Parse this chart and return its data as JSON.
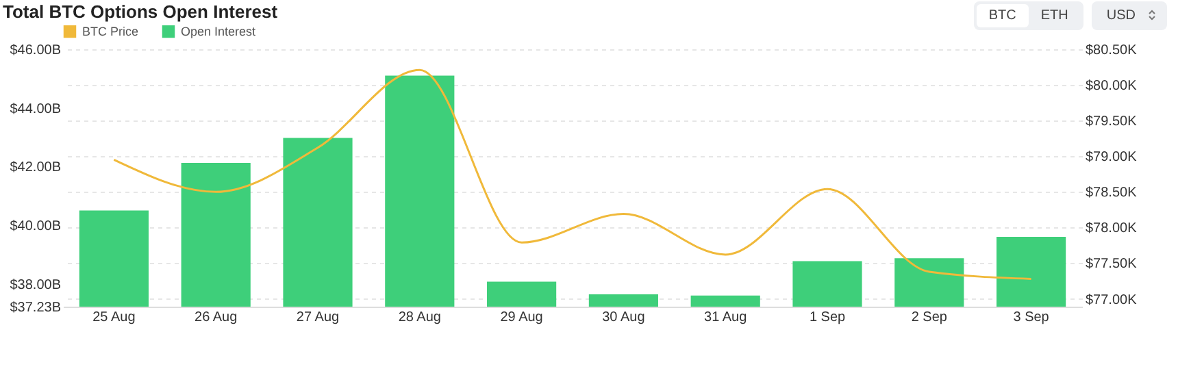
{
  "chart_data": {
    "type": "bar",
    "title": "Total BTC Options Open Interest",
    "annotations": [
      "BTC",
      "ETH",
      "USD"
    ],
    "categories": [
      "25 Aug",
      "26 Aug",
      "27 Aug",
      "28 Aug",
      "29 Aug",
      "30 Aug",
      "31 Aug",
      "1 Sep",
      "2 Sep",
      "3 Sep"
    ],
    "series": [
      {
        "name": "Open Interest",
        "color": "#3ecf7a",
        "values": [
          40.51,
          42.13,
          42.98,
          45.1,
          38.08,
          37.65,
          37.61,
          38.78,
          38.88,
          39.61
        ]
      },
      {
        "name": "BTC Price",
        "type": "line",
        "axis": "y2",
        "color": "#f0b93a",
        "values": [
          78.95,
          78.5,
          79.12,
          80.21,
          77.79,
          78.19,
          77.62,
          78.54,
          77.38,
          77.28
        ]
      }
    ],
    "ylim": [
      37.23,
      46
    ],
    "yticks": [
      {
        "value": 37.23,
        "label": "$37.23B"
      },
      {
        "value": 38,
        "label": "$38.00B"
      },
      {
        "value": 40,
        "label": "$40.00B"
      },
      {
        "value": 42,
        "label": "$42.00B"
      },
      {
        "value": 44,
        "label": "$44.00B"
      },
      {
        "value": 46,
        "label": "$46.00B"
      }
    ],
    "y2lim": [
      76.89,
      80.5
    ],
    "y2ticks": [
      {
        "value": 77,
        "label": "$77.00K"
      },
      {
        "value": 77.5,
        "label": "$77.50K"
      },
      {
        "value": 78,
        "label": "$78.00K"
      },
      {
        "value": 78.5,
        "label": "$78.50K"
      },
      {
        "value": 79,
        "label": "$79.00K"
      },
      {
        "value": 79.5,
        "label": "$79.50K"
      },
      {
        "value": 80,
        "label": "$80.00K"
      },
      {
        "value": 80.5,
        "label": "$80.50K"
      }
    ],
    "grid": true,
    "legend": "top"
  }
}
